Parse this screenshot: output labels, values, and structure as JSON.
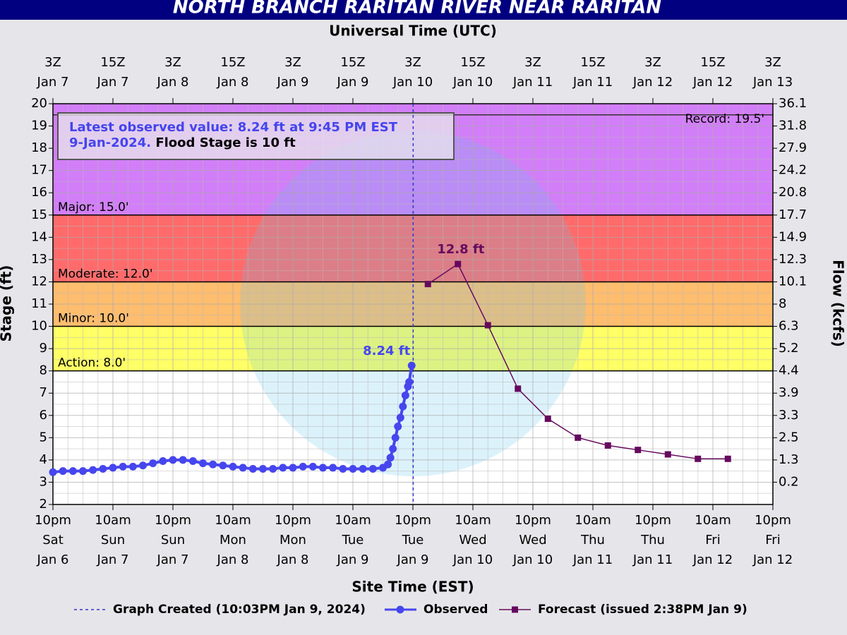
{
  "chart_data": {
    "type": "hydrograph",
    "title": "NORTH BRANCH RARITAN RIVER NEAR RARITAN",
    "x2_label": "Universal Time (UTC)",
    "xlabel": "Site Time (EST)",
    "ylabel": "Stage (ft)",
    "y2label": "Flow (kcfs)",
    "xlim": [
      "2024-01-06T22:00-05:00",
      "2024-01-12T22:00-05:00"
    ],
    "xticks": [
      {
        "value": "2024-01-06T22:00-05:00",
        "label": [
          "10pm",
          "Sat",
          "Jan 6"
        ]
      },
      {
        "value": "2024-01-07T10:00-05:00",
        "label": [
          "10am",
          "Sun",
          "Jan 7"
        ]
      },
      {
        "value": "2024-01-07T22:00-05:00",
        "label": [
          "10pm",
          "Sun",
          "Jan 7"
        ]
      },
      {
        "value": "2024-01-08T10:00-05:00",
        "label": [
          "10am",
          "Mon",
          "Jan 8"
        ]
      },
      {
        "value": "2024-01-08T22:00-05:00",
        "label": [
          "10pm",
          "Mon",
          "Jan 8"
        ]
      },
      {
        "value": "2024-01-09T10:00-05:00",
        "label": [
          "10am",
          "Tue",
          "Jan 9"
        ]
      },
      {
        "value": "2024-01-09T22:00-05:00",
        "label": [
          "10pm",
          "Tue",
          "Jan 9"
        ]
      },
      {
        "value": "2024-01-10T10:00-05:00",
        "label": [
          "10am",
          "Wed",
          "Jan 10"
        ]
      },
      {
        "value": "2024-01-10T22:00-05:00",
        "label": [
          "10pm",
          "Wed",
          "Jan 10"
        ]
      },
      {
        "value": "2024-01-11T10:00-05:00",
        "label": [
          "10am",
          "Thu",
          "Jan 11"
        ]
      },
      {
        "value": "2024-01-11T22:00-05:00",
        "label": [
          "10pm",
          "Thu",
          "Jan 11"
        ]
      },
      {
        "value": "2024-01-12T10:00-05:00",
        "label": [
          "10am",
          "Fri",
          "Jan 12"
        ]
      },
      {
        "value": "2024-01-12T22:00-05:00",
        "label": [
          "10pm",
          "Fri",
          "Jan 12"
        ]
      }
    ],
    "x2ticks": [
      {
        "value": "2024-01-07T03:00Z",
        "label": [
          "3Z",
          "Jan 7"
        ]
      },
      {
        "value": "2024-01-07T15:00Z",
        "label": [
          "15Z",
          "Jan 7"
        ]
      },
      {
        "value": "2024-01-08T03:00Z",
        "label": [
          "3Z",
          "Jan 8"
        ]
      },
      {
        "value": "2024-01-08T15:00Z",
        "label": [
          "15Z",
          "Jan 8"
        ]
      },
      {
        "value": "2024-01-09T03:00Z",
        "label": [
          "3Z",
          "Jan 9"
        ]
      },
      {
        "value": "2024-01-09T15:00Z",
        "label": [
          "15Z",
          "Jan 9"
        ]
      },
      {
        "value": "2024-01-10T03:00Z",
        "label": [
          "3Z",
          "Jan 10"
        ]
      },
      {
        "value": "2024-01-10T15:00Z",
        "label": [
          "15Z",
          "Jan 10"
        ]
      },
      {
        "value": "2024-01-11T03:00Z",
        "label": [
          "3Z",
          "Jan 11"
        ]
      },
      {
        "value": "2024-01-11T15:00Z",
        "label": [
          "15Z",
          "Jan 11"
        ]
      },
      {
        "value": "2024-01-12T03:00Z",
        "label": [
          "3Z",
          "Jan 12"
        ]
      },
      {
        "value": "2024-01-12T15:00Z",
        "label": [
          "15Z",
          "Jan 12"
        ]
      },
      {
        "value": "2024-01-13T03:00Z",
        "label": [
          "3Z",
          "Jan 13"
        ]
      }
    ],
    "ylim": [
      2,
      20
    ],
    "yticks": [
      2,
      3,
      4,
      5,
      6,
      7,
      8,
      9,
      10,
      11,
      12,
      13,
      14,
      15,
      16,
      17,
      18,
      19,
      20
    ],
    "y2ticks": [
      {
        "value": 36.1,
        "stage": 20
      },
      {
        "value": 31.8,
        "stage": 19
      },
      {
        "value": 27.9,
        "stage": 18
      },
      {
        "value": 24.2,
        "stage": 17
      },
      {
        "value": 20.8,
        "stage": 16
      },
      {
        "value": 17.7,
        "stage": 15
      },
      {
        "value": 14.9,
        "stage": 14
      },
      {
        "value": 12.3,
        "stage": 13
      },
      {
        "value": 10.1,
        "stage": 12
      },
      {
        "value": 8.0,
        "stage": 11
      },
      {
        "value": 6.3,
        "stage": 10
      },
      {
        "value": 5.2,
        "stage": 9
      },
      {
        "value": 4.4,
        "stage": 8
      },
      {
        "value": 3.9,
        "stage": 7
      },
      {
        "value": 3.3,
        "stage": 6
      },
      {
        "value": 2.5,
        "stage": 5
      },
      {
        "value": 1.3,
        "stage": 4
      },
      {
        "value": 0.2,
        "stage": 3
      }
    ],
    "grid": true,
    "thresholds": [
      {
        "label": "Action: 8.0'",
        "value": 8,
        "color": "#ffff66"
      },
      {
        "label": "Minor: 10.0'",
        "value": 10,
        "color": "#ffbd6e"
      },
      {
        "label": "Moderate: 12.0'",
        "value": 12,
        "color": "#ff6b6b"
      },
      {
        "label": "Major: 15.0'",
        "value": 15,
        "color": "#d27ef8"
      }
    ],
    "record": {
      "label": "Record: 19.5'",
      "value": 19.5
    },
    "info": {
      "lines": [
        "Latest observed value: 8.24 ft at 9:45 PM EST",
        "9-Jan-2024."
      ],
      "flood_stage": "Flood Stage is 10 ft"
    },
    "created": {
      "name": "Graph Created (10:03PM Jan 9, 2024)",
      "x": "2024-01-09T22:03-05:00",
      "color": "#3333cc"
    },
    "series": [
      {
        "name": "Observed",
        "color": "#4646ee",
        "x": [
          "2024-01-06T22:00-05:00",
          "2024-01-07T00:00-05:00",
          "2024-01-07T02:00-05:00",
          "2024-01-07T04:00-05:00",
          "2024-01-07T06:00-05:00",
          "2024-01-07T08:00-05:00",
          "2024-01-07T10:00-05:00",
          "2024-01-07T12:00-05:00",
          "2024-01-07T14:00-05:00",
          "2024-01-07T16:00-05:00",
          "2024-01-07T18:00-05:00",
          "2024-01-07T20:00-05:00",
          "2024-01-07T22:00-05:00",
          "2024-01-08T00:00-05:00",
          "2024-01-08T02:00-05:00",
          "2024-01-08T04:00-05:00",
          "2024-01-08T06:00-05:00",
          "2024-01-08T08:00-05:00",
          "2024-01-08T10:00-05:00",
          "2024-01-08T12:00-05:00",
          "2024-01-08T14:00-05:00",
          "2024-01-08T16:00-05:00",
          "2024-01-08T18:00-05:00",
          "2024-01-08T20:00-05:00",
          "2024-01-08T22:00-05:00",
          "2024-01-09T00:00-05:00",
          "2024-01-09T02:00-05:00",
          "2024-01-09T04:00-05:00",
          "2024-01-09T06:00-05:00",
          "2024-01-09T08:00-05:00",
          "2024-01-09T10:00-05:00",
          "2024-01-09T12:00-05:00",
          "2024-01-09T14:00-05:00",
          "2024-01-09T16:00-05:00",
          "2024-01-09T17:00-05:00",
          "2024-01-09T17:30-05:00",
          "2024-01-09T18:00-05:00",
          "2024-01-09T18:30-05:00",
          "2024-01-09T19:00-05:00",
          "2024-01-09T19:30-05:00",
          "2024-01-09T20:00-05:00",
          "2024-01-09T20:30-05:00",
          "2024-01-09T21:00-05:00",
          "2024-01-09T21:15-05:00",
          "2024-01-09T21:45-05:00"
        ],
        "values": [
          3.45,
          3.5,
          3.5,
          3.5,
          3.55,
          3.6,
          3.65,
          3.7,
          3.7,
          3.75,
          3.85,
          3.95,
          4.0,
          4.0,
          3.95,
          3.85,
          3.8,
          3.75,
          3.7,
          3.65,
          3.6,
          3.6,
          3.6,
          3.65,
          3.65,
          3.7,
          3.7,
          3.65,
          3.65,
          3.6,
          3.6,
          3.6,
          3.6,
          3.65,
          3.8,
          4.1,
          4.5,
          5.0,
          5.5,
          5.9,
          6.4,
          6.9,
          7.3,
          7.5,
          8.24
        ],
        "value_labels": [
          null,
          null,
          null,
          null,
          null,
          null,
          null,
          null,
          null,
          null,
          null,
          null,
          null,
          null,
          null,
          null,
          null,
          null,
          null,
          null,
          null,
          null,
          null,
          null,
          null,
          null,
          null,
          null,
          null,
          null,
          null,
          null,
          null,
          null,
          null,
          null,
          null,
          null,
          null,
          null,
          null,
          null,
          null,
          null,
          "8.24 ft"
        ]
      },
      {
        "name": "Forecast (issued 2:38PM Jan 9)",
        "color": "#660a5e",
        "x": [
          "2024-01-10T01:00-05:00",
          "2024-01-10T07:00-05:00",
          "2024-01-10T13:00-05:00",
          "2024-01-10T19:00-05:00",
          "2024-01-11T01:00-05:00",
          "2024-01-11T07:00-05:00",
          "2024-01-11T13:00-05:00",
          "2024-01-11T19:00-05:00",
          "2024-01-12T01:00-05:00",
          "2024-01-12T07:00-05:00",
          "2024-01-12T13:00-05:00"
        ],
        "values": [
          11.9,
          12.8,
          10.05,
          7.2,
          5.85,
          5.0,
          4.65,
          4.45,
          4.25,
          4.05,
          4.05
        ],
        "value_labels": [
          null,
          "12.8 ft",
          null,
          null,
          null,
          null,
          null,
          null,
          null,
          null,
          null
        ]
      }
    ]
  }
}
